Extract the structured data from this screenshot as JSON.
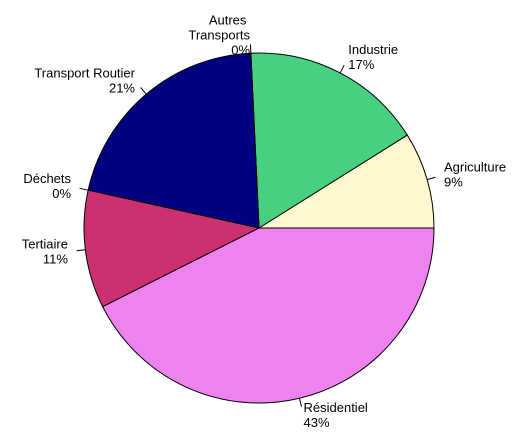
{
  "chart_data": {
    "type": "pie",
    "categories": [
      "Agriculture",
      "Industrie",
      "Autres Transports",
      "Transport Routier",
      "Déchets",
      "Tertiaire",
      "Résidentiel"
    ],
    "values": [
      9,
      17,
      0,
      21,
      0,
      11,
      43
    ],
    "value_labels": [
      "9%",
      "17%",
      "0%",
      "21%",
      "0%",
      "11%",
      "43%"
    ],
    "colors": [
      "#fff8d0",
      "#48d080",
      "#888888",
      "#000080",
      "#cc3366",
      "#cc3070",
      "#ee82ee"
    ]
  }
}
